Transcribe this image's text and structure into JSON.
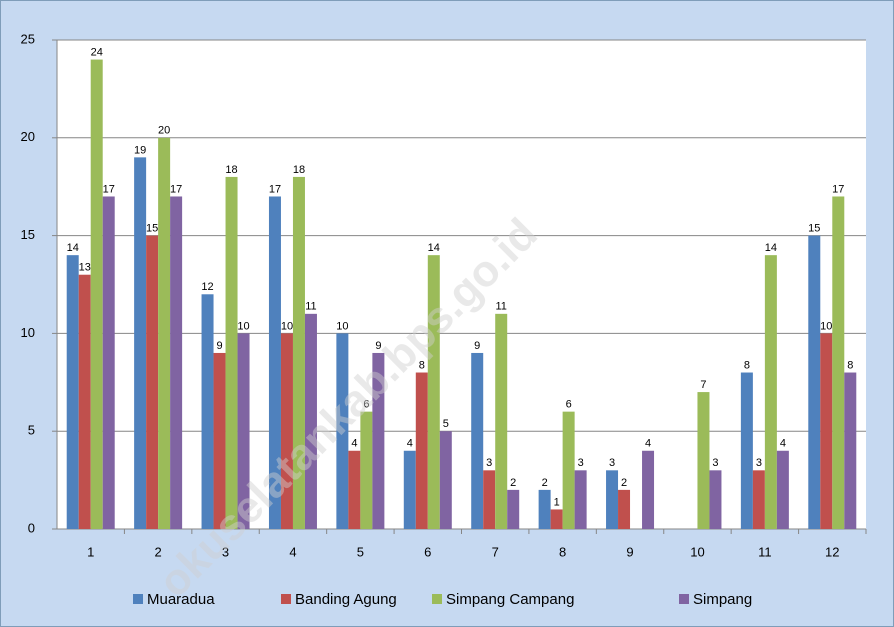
{
  "chart_data": {
    "type": "bar",
    "categories": [
      "1",
      "2",
      "3",
      "4",
      "5",
      "6",
      "7",
      "8",
      "9",
      "10",
      "11",
      "12"
    ],
    "series": [
      {
        "name": "Muaradua",
        "color": "#4f81bd",
        "values": [
          14,
          19,
          12,
          17,
          10,
          4,
          9,
          2,
          3,
          null,
          8,
          15
        ]
      },
      {
        "name": "Banding Agung",
        "color": "#c0504d",
        "values": [
          13,
          15,
          9,
          10,
          4,
          8,
          3,
          1,
          2,
          null,
          3,
          10
        ]
      },
      {
        "name": "Simpang Campang",
        "color": "#9bbb59",
        "values": [
          24,
          20,
          18,
          18,
          6,
          14,
          11,
          6,
          null,
          7,
          14,
          17
        ]
      },
      {
        "name": "Simpang",
        "color": "#8064a2",
        "values": [
          17,
          17,
          10,
          11,
          9,
          5,
          2,
          3,
          4,
          3,
          4,
          8
        ]
      }
    ],
    "ylim": [
      0,
      25
    ],
    "yticks": [
      0,
      5,
      10,
      15,
      20,
      25
    ],
    "grid": true,
    "legend": "bottom",
    "watermark": "okuselatankab.bps.go.id"
  }
}
